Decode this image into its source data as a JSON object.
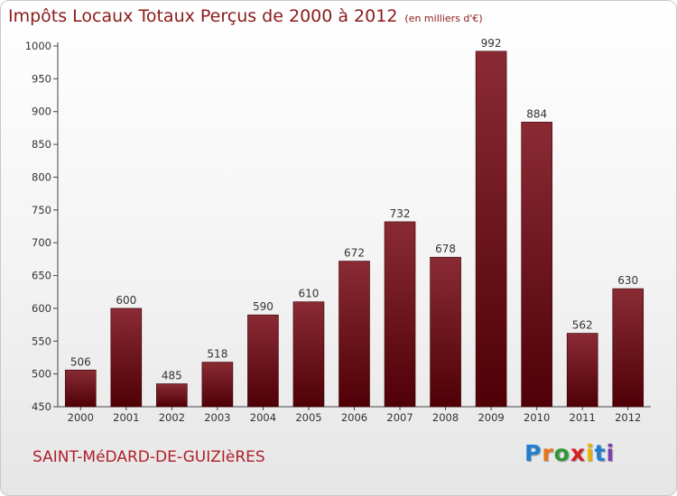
{
  "title": "Impôts Locaux Totaux Perçus de 2000 à 2012",
  "unit_note": "(en milliers d'€)",
  "commune": "SAINT-MéDARD-DE-GUIZIèRES",
  "logo": {
    "text": "Proxiti",
    "letter_colors": [
      "#1f7fd1",
      "#e8731a",
      "#2e9a36",
      "#d42020",
      "#e8b400",
      "#1f7fd1",
      "#7a3fb0"
    ]
  },
  "colors": {
    "bar_top": "#8a2b34",
    "bar_bottom": "#4f0006",
    "title": "#8b1a1a",
    "commune": "#b0202a"
  },
  "chart_data": {
    "type": "bar",
    "categories": [
      "2000",
      "2001",
      "2002",
      "2003",
      "2004",
      "2005",
      "2006",
      "2007",
      "2008",
      "2009",
      "2010",
      "2011",
      "2012"
    ],
    "values": [
      506,
      600,
      485,
      518,
      590,
      610,
      672,
      732,
      678,
      992,
      884,
      562,
      630
    ],
    "ylim": [
      450,
      1000
    ],
    "yticks": [
      450,
      500,
      550,
      600,
      650,
      700,
      750,
      800,
      850,
      900,
      950,
      1000
    ],
    "grid": false,
    "data_labels": true
  }
}
